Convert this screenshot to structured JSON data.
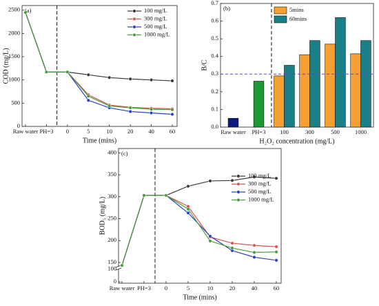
{
  "chart_data": [
    {
      "type": "line",
      "label": "(a)",
      "xlabel": "Time (mins)",
      "ylabel": "COD (mg/L)",
      "categories": [
        "Raw water",
        "PH=3",
        "0",
        "5",
        "10",
        "20",
        "40",
        "60"
      ],
      "ylim": [
        0,
        2600
      ],
      "yticks": [
        0,
        500,
        1000,
        1500,
        2000,
        2500
      ],
      "legend": "upper right",
      "series": [
        {
          "name": "100 mg/L",
          "color": "#3a3a3a",
          "values": [
            2450,
            1170,
            1170,
            1110,
            1050,
            1020,
            1000,
            980
          ]
        },
        {
          "name": "300 mg/L",
          "color": "#d9534f",
          "values": [
            2450,
            1170,
            1170,
            680,
            460,
            410,
            390,
            380
          ]
        },
        {
          "name": "500 mg/L",
          "color": "#2340cc",
          "values": [
            2450,
            1170,
            1170,
            560,
            400,
            320,
            290,
            260
          ]
        },
        {
          "name": "1000 mg/L",
          "color": "#4a9a3a",
          "values": [
            2450,
            1170,
            1170,
            650,
            440,
            400,
            370,
            360
          ]
        }
      ]
    },
    {
      "type": "bar",
      "label": "(b)",
      "xlabel": "H₂O₂ concentration (mg/L)",
      "ylabel": "B/C",
      "categories": [
        "Raw water",
        "PH=3",
        "100",
        "300",
        "500",
        "1000"
      ],
      "ylim": [
        0,
        0.7
      ],
      "yticks": [
        {
          "value": 0,
          "label": "0.0"
        },
        0.1,
        0.2,
        0.3,
        0.4,
        0.5,
        0.6,
        0.7
      ],
      "legend": "upper left",
      "reference_line": 0.3,
      "reference_color": "#6a3fc8",
      "pre_values": [
        0.05,
        0.26
      ],
      "pre_colors": [
        "#0b1a80",
        "#1a9a30"
      ],
      "series": [
        {
          "name": "5mins",
          "color": "#f5a030",
          "values": [
            null,
            null,
            0.29,
            0.41,
            0.47,
            0.415
          ]
        },
        {
          "name": "60mins",
          "color": "#1a7f86",
          "values": [
            null,
            null,
            0.35,
            0.49,
            0.62,
            0.49
          ]
        }
      ]
    },
    {
      "type": "line",
      "label": "(c)",
      "xlabel": "Time (mins)",
      "ylabel": "BOD₅ (mg/L)",
      "categories": [
        "Raw water",
        "PH=3",
        "0",
        "5",
        "10",
        "20",
        "40",
        "60"
      ],
      "ylim": [
        0,
        410
      ],
      "ybreak": [
        0,
        150
      ],
      "yticks": [
        0,
        100,
        150,
        200,
        250,
        300,
        350,
        400
      ],
      "legend": "center right",
      "series": [
        {
          "name": "100 mg/L",
          "color": "#3a3a3a",
          "values": [
            127,
            303,
            303,
            324,
            336,
            337,
            345,
            342
          ]
        },
        {
          "name": "300 mg/L",
          "color": "#d9534f",
          "values": [
            127,
            303,
            303,
            278,
            208,
            194,
            189,
            186
          ]
        },
        {
          "name": "500 mg/L",
          "color": "#2340cc",
          "values": [
            127,
            303,
            303,
            263,
            210,
            177,
            162,
            155
          ]
        },
        {
          "name": "1000 mg/L",
          "color": "#4a9a3a",
          "values": [
            127,
            303,
            303,
            272,
            199,
            183,
            173,
            174
          ]
        }
      ]
    }
  ]
}
